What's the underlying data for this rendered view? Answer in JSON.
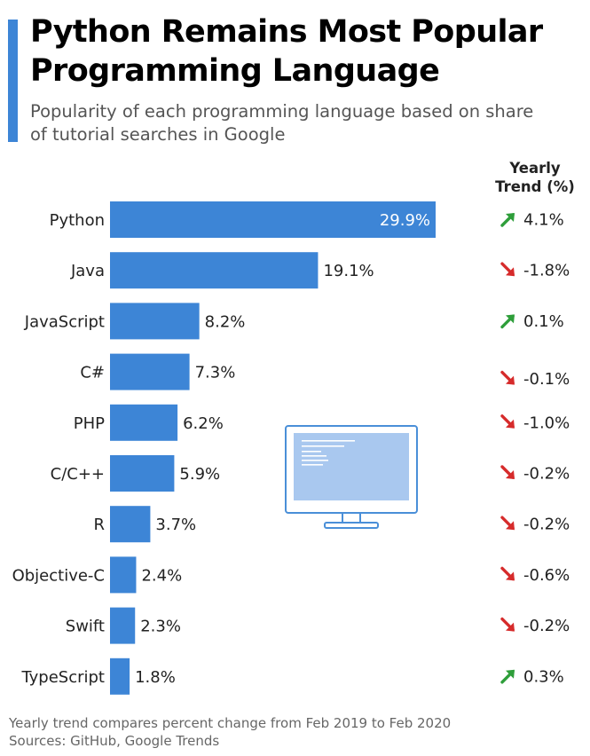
{
  "header": {
    "title_line1": "Python Remains Most Popular",
    "title_line2": "Programming Language",
    "subtitle_line1": "Popularity of each programming language based on share",
    "subtitle_line2": "of tutorial searches in Google",
    "trend_header_line1": "Yearly",
    "trend_header_line2": "Trend (%)"
  },
  "colors": {
    "bar": "#3d85d6",
    "accent": "#3d85d6",
    "up": "#2e9e3a",
    "down": "#d62b2b",
    "monitor": "#4a8fd8",
    "monitor_screen": "#a9c8ef"
  },
  "icons": {
    "up": "arrow-up-right-icon",
    "down": "arrow-down-right-icon",
    "illustration": "computer-monitor-icon"
  },
  "chart_data": {
    "type": "bar",
    "orientation": "horizontal",
    "categories": [
      "Python",
      "Java",
      "JavaScript",
      "C#",
      "PHP",
      "C/C++",
      "R",
      "Objective-C",
      "Swift",
      "TypeScript"
    ],
    "values": [
      29.9,
      19.1,
      8.2,
      7.3,
      6.2,
      5.9,
      3.7,
      2.4,
      2.3,
      1.8
    ],
    "value_labels": [
      "29.9%",
      "19.1%",
      "8.2%",
      "7.3%",
      "6.2%",
      "5.9%",
      "3.7%",
      "2.4%",
      "2.3%",
      "1.8%"
    ],
    "trend": [
      4.1,
      -1.8,
      0.1,
      -0.1,
      -1.0,
      -0.2,
      -0.2,
      -0.6,
      -0.2,
      0.3
    ],
    "trend_labels": [
      "4.1%",
      "-1.8%",
      "0.1%",
      "-0.1%",
      "-1.0%",
      "-0.2%",
      "-0.2%",
      "-0.6%",
      "-0.2%",
      "0.3%"
    ],
    "trend_direction": [
      "up",
      "down",
      "up",
      "down",
      "down",
      "down",
      "down",
      "down",
      "down",
      "up"
    ],
    "title": "Python Remains Most Popular Programming Language",
    "xlabel": "",
    "ylabel": "",
    "grid": false
  },
  "footer": {
    "note": "Yearly trend compares percent change from Feb 2019 to Feb 2020",
    "sources": "Sources: GitHub, Google Trends"
  }
}
